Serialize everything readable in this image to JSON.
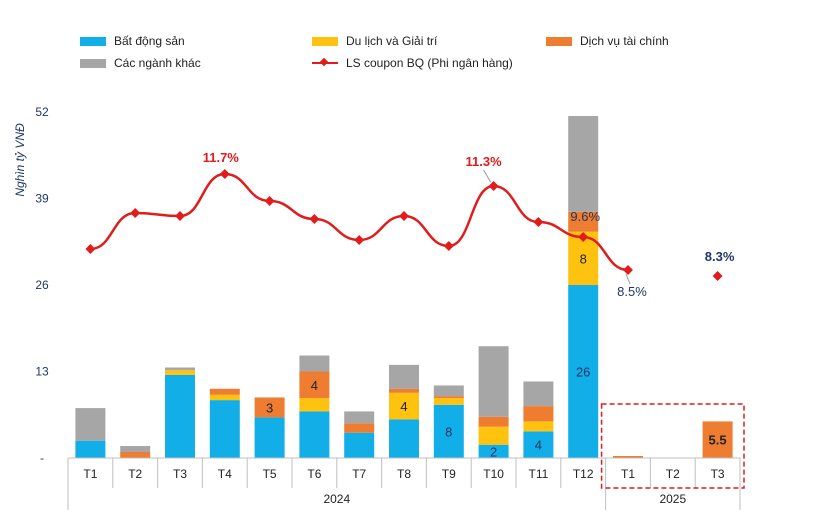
{
  "legend": {
    "bat_dong_san": "Bất động sản",
    "du_lich": "Du lịch và Giải trí",
    "dich_vu_tai_chinh": "Dịch vụ tài chính",
    "cac_nganh_khac": "Các ngành khác",
    "ls_coupon": "LS coupon BQ (Phi ngân hàng)"
  },
  "colors": {
    "bat_dong_san": "#11aee8",
    "du_lich": "#ffc20e",
    "dich_vu_tai_chinh": "#ee7d31",
    "cac_nganh_khac": "#a6a6a6",
    "ls_coupon": "#e21b1b",
    "box": "#e21b1b"
  },
  "chart_data": {
    "type": "bar",
    "ylabel": "Nghìn tỷ VNĐ",
    "ylim": [
      0,
      52
    ],
    "yticks": [
      "-",
      "13",
      "26",
      "39",
      "52"
    ],
    "categories": [
      "T1",
      "T2",
      "T3",
      "T4",
      "T5",
      "T6",
      "T7",
      "T8",
      "T9",
      "T10",
      "T11",
      "T12",
      "T1",
      "T2",
      "T3"
    ],
    "groups": [
      {
        "label": "2024",
        "count": 12
      },
      {
        "label": "2025",
        "count": 3
      }
    ],
    "series": [
      {
        "name": "Bất động sản",
        "key": "bat_dong_san",
        "values": [
          2.6,
          0,
          12.5,
          8.7,
          6.1,
          7.0,
          3.8,
          5.8,
          8.0,
          2.0,
          4.0,
          26.0,
          0,
          0,
          0
        ],
        "labels": [
          "",
          "",
          "",
          "",
          "",
          "",
          "",
          "",
          "8",
          "2",
          "4",
          "26",
          "",
          "",
          ""
        ]
      },
      {
        "name": "Du lịch và Giải trí",
        "key": "du_lich",
        "values": [
          0,
          0,
          0.7,
          0.8,
          0,
          2.0,
          0,
          4.0,
          1.0,
          2.7,
          1.5,
          8.0,
          0,
          0,
          0
        ],
        "labels": [
          "",
          "",
          "",
          "",
          "",
          "",
          "",
          "4",
          "",
          "",
          "",
          "8",
          "",
          "",
          ""
        ]
      },
      {
        "name": "Dịch vụ tài chính",
        "key": "dich_vu_tai_chinh",
        "values": [
          0,
          0.9,
          0,
          0.9,
          3.0,
          4.0,
          1.4,
          0.6,
          0.3,
          1.5,
          2.3,
          3.0,
          0.3,
          0,
          5.5
        ],
        "labels": [
          "",
          "",
          "",
          "",
          "3",
          "4",
          "",
          "",
          "",
          "",
          "",
          "",
          "",
          "",
          "5.5"
        ]
      },
      {
        "name": "Các ngành khác",
        "key": "cac_nganh_khac",
        "values": [
          4.9,
          0.9,
          0.4,
          0,
          0,
          2.4,
          1.8,
          3.6,
          1.6,
          10.6,
          3.7,
          14.4,
          0,
          0,
          0
        ],
        "labels": [
          "",
          "",
          "",
          "",
          "",
          "",
          "",
          "",
          "",
          "",
          "",
          "",
          "",
          "",
          ""
        ]
      }
    ],
    "line": {
      "name": "LS coupon BQ (Phi ngân hàng)",
      "values": [
        9.2,
        10.4,
        10.3,
        11.7,
        10.8,
        10.2,
        9.5,
        10.3,
        9.3,
        11.3,
        10.1,
        9.6,
        8.5,
        null,
        8.3
      ],
      "annotations": [
        {
          "index": 3,
          "text": "11.7%",
          "pos": "above"
        },
        {
          "index": 9,
          "text": "11.3%",
          "pos": "above"
        },
        {
          "index": 11,
          "text": "9.6%",
          "pos": "above"
        },
        {
          "index": 12,
          "text": "8.5%",
          "pos": "below"
        },
        {
          "index": 14,
          "text": "8.3%",
          "pos": "above"
        }
      ]
    },
    "highlight_box": {
      "from_index": 12,
      "to_index": 14,
      "style": "dashed"
    },
    "grid": false,
    "legend_position": "top"
  }
}
